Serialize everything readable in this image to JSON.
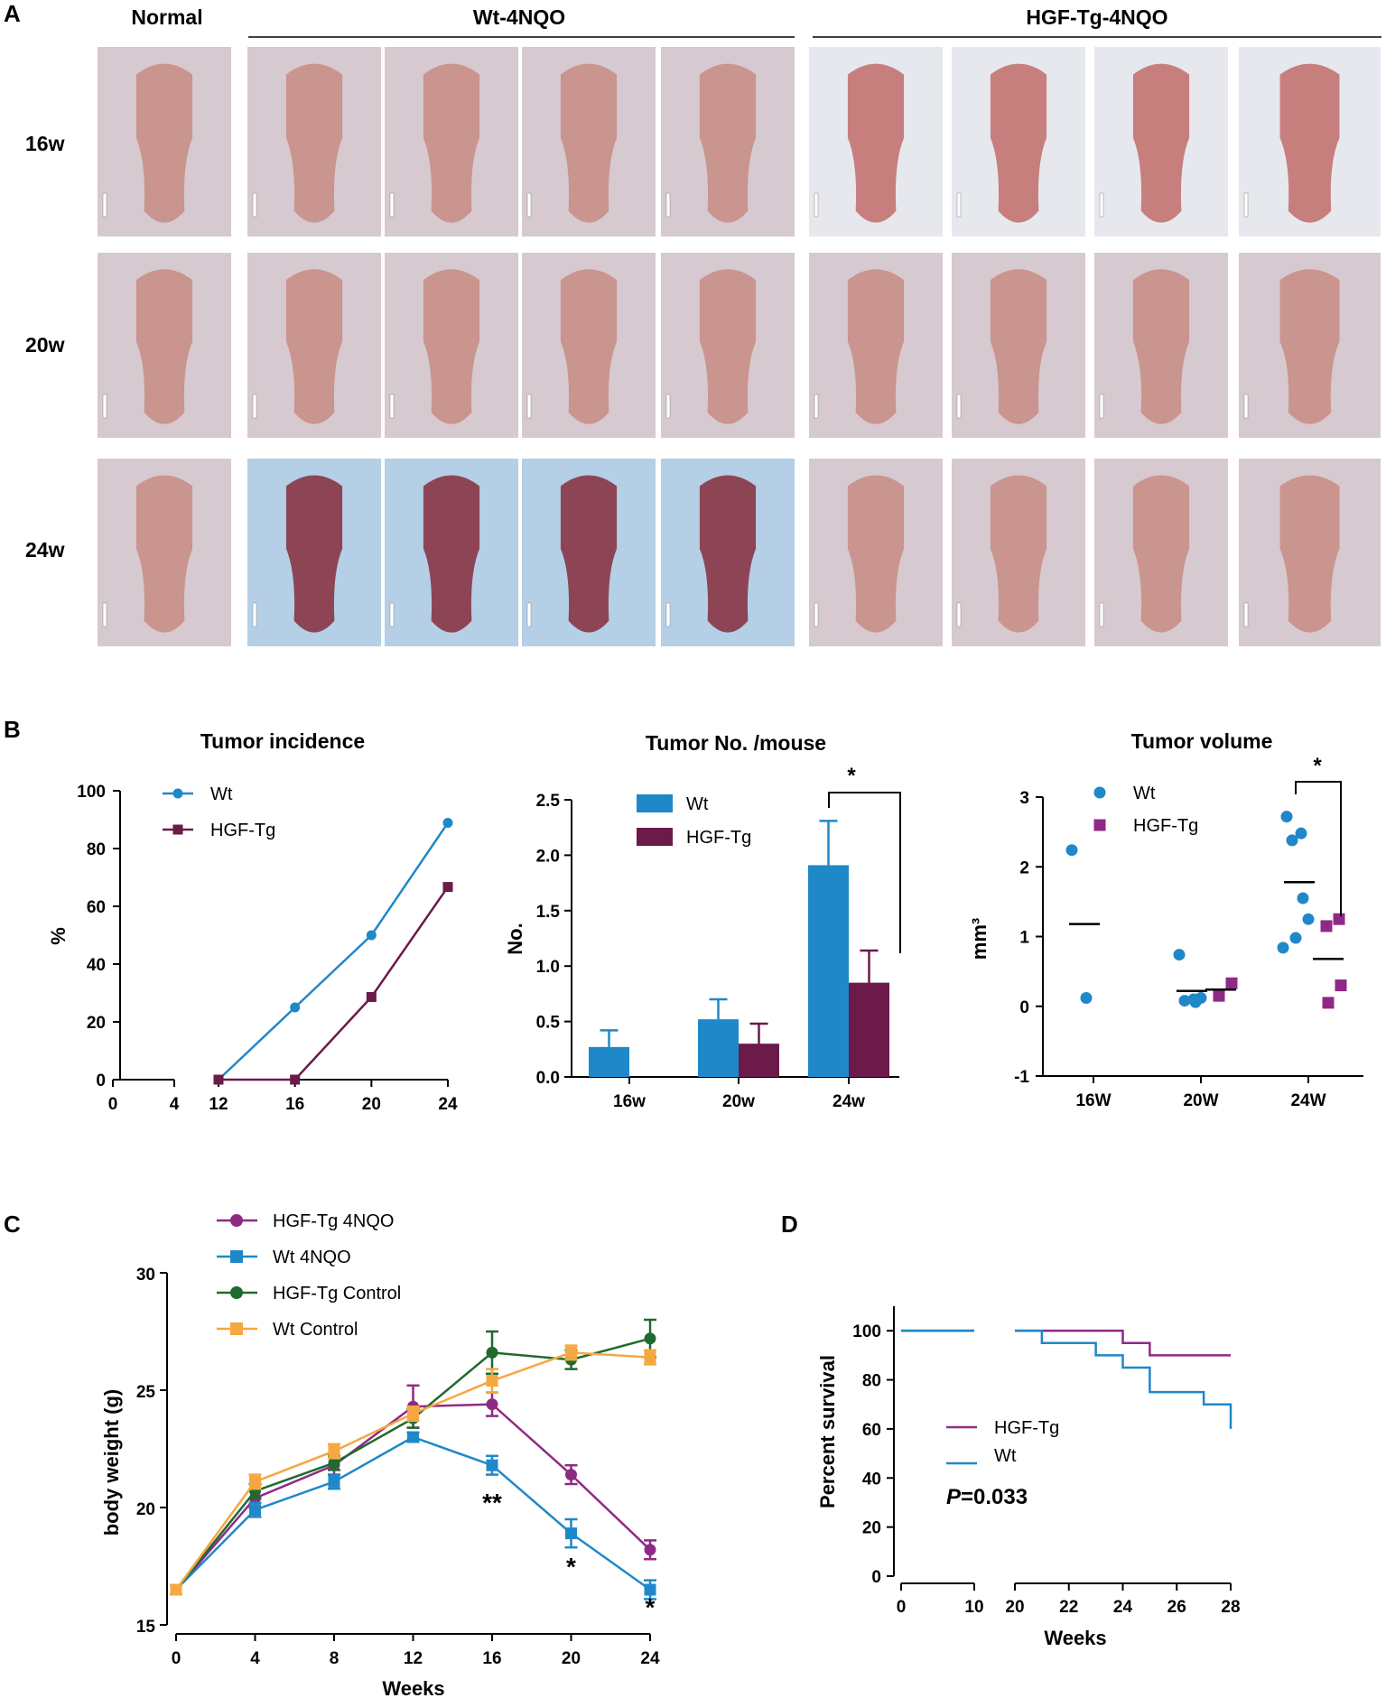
{
  "panels": {
    "A": "A",
    "B": "B",
    "C": "C",
    "D": "D"
  },
  "panel_a": {
    "headers": [
      "Normal",
      "Wt-4NQO",
      "HGF-Tg-4NQO"
    ],
    "rows": [
      "16w",
      "20w",
      "24w"
    ],
    "photo": {
      "normal": {
        "fill": "#d6c9cf",
        "tissue": "#c98f8a"
      },
      "wt_24w": {
        "fill": "#b4cfe6",
        "tissue": "#8a3a4a"
      },
      "tg_16w": {
        "fill": "#e6e8ee",
        "tissue": "#c47574"
      }
    }
  },
  "chart_data": [
    {
      "id": "tumor-incidence",
      "type": "line",
      "title": "Tumor incidence",
      "ylabel": "%",
      "xlabel": "",
      "x_ticks": [
        "0",
        "4",
        "12",
        "16",
        "20",
        "24"
      ],
      "y_ticks": [
        "0",
        "20",
        "40",
        "60",
        "80",
        "100"
      ],
      "ylim": [
        0,
        100
      ],
      "x_axis_break": [
        4,
        12
      ],
      "series": [
        {
          "name": "Wt",
          "color": "#1f88c8",
          "marker": "circle",
          "x": [
            12,
            16,
            20,
            24
          ],
          "y": [
            0,
            25,
            50,
            88.9
          ]
        },
        {
          "name": "HGF-Tg",
          "color": "#6b1a4a",
          "marker": "square",
          "x": [
            12,
            16,
            20,
            24
          ],
          "y": [
            0,
            0,
            28.6,
            66.7
          ]
        }
      ],
      "legend": "top-left"
    },
    {
      "id": "tumor-number",
      "type": "bar",
      "title": "Tumor No. /mouse",
      "ylabel": "No.",
      "xlabel": "",
      "categories": [
        "16w",
        "20w",
        "24w"
      ],
      "y_ticks": [
        "0.0",
        "0.5",
        "1.0",
        "1.5",
        "2.0",
        "2.5"
      ],
      "ylim": [
        0,
        2.5
      ],
      "series": [
        {
          "name": "Wt",
          "color": "#1f88c8",
          "values": [
            0.27,
            0.52,
            1.91
          ],
          "errors": [
            0.15,
            0.18,
            0.4
          ]
        },
        {
          "name": "HGF-Tg",
          "color": "#6b1a4a",
          "values": [
            0,
            0.3,
            0.85
          ],
          "errors": [
            0,
            0.18,
            0.29
          ]
        }
      ],
      "significance": "*",
      "legend": "top-left"
    },
    {
      "id": "tumor-volume",
      "type": "scatter",
      "title": "Tumor volume",
      "ylabel": "mm³",
      "xlabel": "",
      "categories": [
        "16W",
        "20W",
        "24W"
      ],
      "y_ticks": [
        "-1",
        "0",
        "1",
        "2",
        "3"
      ],
      "ylim": [
        -1,
        3
      ],
      "series": [
        {
          "name": "Wt",
          "color": "#1f88c8",
          "marker": "circle",
          "points": [
            [
              0,
              2.24
            ],
            [
              0,
              0.12
            ],
            [
              1,
              0.74
            ],
            [
              1,
              0.1
            ],
            [
              1,
              0.08
            ],
            [
              1,
              0.06
            ],
            [
              1,
              0.12
            ],
            [
              2,
              2.72
            ],
            [
              2,
              2.48
            ],
            [
              2,
              2.38
            ],
            [
              2,
              1.55
            ],
            [
              2,
              1.25
            ],
            [
              2,
              0.98
            ],
            [
              2,
              0.84
            ]
          ],
          "means": [
            1.18,
            0.22,
            1.78
          ]
        },
        {
          "name": "HGF-Tg",
          "color": "#8e2a86",
          "marker": "square",
          "points": [
            [
              1,
              0.33
            ],
            [
              1,
              0.15
            ],
            [
              2,
              1.25
            ],
            [
              2,
              1.15
            ],
            [
              2,
              0.3
            ],
            [
              2,
              0.05
            ]
          ],
          "means": [
            null,
            0.24,
            0.68
          ]
        }
      ],
      "significance": "*",
      "legend": "top-right"
    },
    {
      "id": "body-weight",
      "type": "line",
      "title": "",
      "ylabel": "body weight (g)",
      "xlabel": "Weeks",
      "x_ticks": [
        "0",
        "4",
        "8",
        "12",
        "16",
        "20",
        "24"
      ],
      "y_ticks": [
        "15",
        "20",
        "25",
        "30"
      ],
      "ylim": [
        15,
        30
      ],
      "series": [
        {
          "name": "HGF-Tg 4NQO",
          "color": "#8e2a86",
          "marker": "circle",
          "x": [
            0,
            4,
            8,
            12,
            16,
            20,
            24
          ],
          "y": [
            16.5,
            20.4,
            21.8,
            24.3,
            24.4,
            21.4,
            18.2
          ],
          "err": [
            0.2,
            0.4,
            0.4,
            0.9,
            0.5,
            0.4,
            0.4
          ]
        },
        {
          "name": "Wt 4NQO",
          "color": "#1f88c8",
          "marker": "square",
          "x": [
            0,
            4,
            8,
            12,
            16,
            20,
            24
          ],
          "y": [
            16.5,
            19.9,
            21.1,
            23.0,
            21.8,
            18.9,
            16.5
          ],
          "err": [
            0.2,
            0.3,
            0.3,
            0.2,
            0.4,
            0.6,
            0.4
          ]
        },
        {
          "name": "HGF-Tg Control",
          "color": "#1f6a2e",
          "marker": "circle",
          "x": [
            0,
            4,
            8,
            12,
            16,
            20,
            24
          ],
          "y": [
            16.5,
            20.7,
            21.9,
            23.8,
            26.6,
            26.3,
            27.2
          ],
          "err": [
            0.2,
            0.3,
            0.3,
            0.4,
            0.9,
            0.4,
            0.8
          ]
        },
        {
          "name": "Wt Control",
          "color": "#f5a742",
          "marker": "square",
          "x": [
            0,
            4,
            8,
            12,
            16,
            20,
            24
          ],
          "y": [
            16.5,
            21.1,
            22.4,
            24.0,
            25.4,
            26.6,
            26.4
          ],
          "err": [
            0.2,
            0.3,
            0.3,
            0.3,
            0.5,
            0.3,
            0.3
          ]
        }
      ],
      "annotations": [
        {
          "x": 16,
          "label": "**"
        },
        {
          "x": 20,
          "label": "*"
        },
        {
          "x": 24,
          "label": "*"
        }
      ],
      "legend": "top-left"
    },
    {
      "id": "survival",
      "type": "line",
      "title": "",
      "ylabel": "Percent survival",
      "xlabel": "Weeks",
      "x_ticks": [
        "0",
        "10",
        "20",
        "22",
        "24",
        "26",
        "28"
      ],
      "y_ticks": [
        "0",
        "20",
        "40",
        "60",
        "80",
        "100"
      ],
      "ylim": [
        0,
        110
      ],
      "x_axis_break": [
        10,
        20
      ],
      "series": [
        {
          "name": "HGF-Tg",
          "color": "#8e2a86",
          "step_x": [
            0,
            10,
            20,
            24,
            24,
            25,
            25,
            28
          ],
          "step_y": [
            100,
            100,
            100,
            100,
            95,
            95,
            90,
            90
          ]
        },
        {
          "name": "Wt",
          "color": "#1f88c8",
          "step_x": [
            0,
            10,
            20,
            21,
            21,
            23,
            23,
            24,
            24,
            25,
            25,
            27,
            27,
            28,
            28
          ],
          "step_y": [
            100,
            100,
            100,
            100,
            95,
            95,
            90,
            90,
            85,
            85,
            75,
            75,
            70,
            70,
            60
          ]
        }
      ],
      "p_value": {
        "prefix": "P",
        "rest": "=0.033"
      },
      "legend": "bottom-left"
    }
  ]
}
